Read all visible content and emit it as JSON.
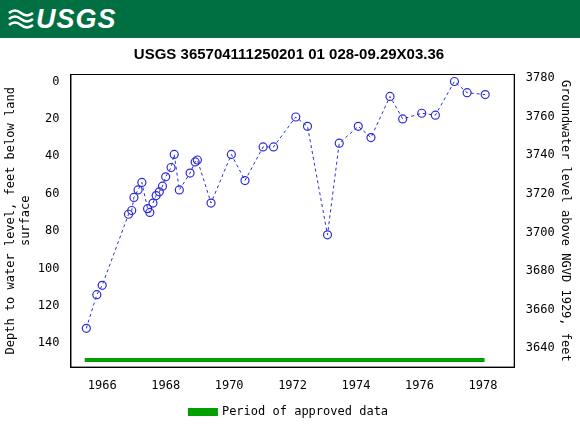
{
  "header": {
    "logo": "USGS"
  },
  "chart_data": {
    "type": "line",
    "title": "USGS 365704111250201 01 028-09.29X03.36",
    "y_label": [
      "Depth to water level, feet below land",
      "surface"
    ],
    "y2_label": "Groundwater level above NGVD 1929, feet",
    "xlim": [
      1965,
      1979
    ],
    "xticks": [
      1966,
      1968,
      1970,
      1972,
      1974,
      1976,
      1978
    ],
    "ylim": [
      153,
      -4
    ],
    "yticks": [
      0,
      20,
      40,
      60,
      80,
      100,
      120,
      140
    ],
    "y2lim": [
      3630,
      3782
    ],
    "y2ticks": [
      3640,
      3660,
      3680,
      3700,
      3720,
      3740,
      3760,
      3780
    ],
    "grid": false,
    "legend": "bottom",
    "series": [
      {
        "color": "#2b2bd8",
        "marker": "circle",
        "line_style": "dashed",
        "x": [
          1965.5,
          1965.83,
          1966.0,
          1966.83,
          1966.93,
          1967.0,
          1967.13,
          1967.25,
          1967.43,
          1967.5,
          1967.6,
          1967.7,
          1967.8,
          1967.9,
          1968.0,
          1968.17,
          1968.27,
          1968.43,
          1968.77,
          1968.93,
          1969.0,
          1969.43,
          1970.07,
          1970.5,
          1971.07,
          1971.4,
          1972.1,
          1972.47,
          1973.1,
          1973.47,
          1974.07,
          1974.47,
          1975.07,
          1975.47,
          1976.07,
          1976.5,
          1977.1,
          1977.5,
          1978.07
        ],
        "values": [
          132,
          114,
          109,
          71,
          69,
          62,
          58,
          54,
          68,
          70,
          65,
          61,
          59,
          56,
          51,
          46,
          39,
          58,
          49,
          43,
          42,
          65,
          39,
          53,
          35,
          35,
          19,
          24,
          82,
          33,
          24,
          30,
          8,
          20,
          17,
          18,
          0,
          6,
          7
        ]
      },
      {
        "name": "Period of approved data",
        "color": "#00a000",
        "line_style": "solid",
        "x": [
          1965.45,
          1978.05
        ],
        "values": [
          149,
          149
        ]
      }
    ]
  }
}
